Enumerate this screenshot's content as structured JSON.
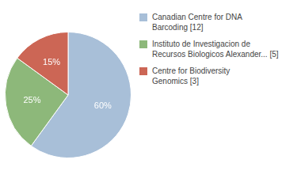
{
  "chart_data": {
    "type": "pie",
    "categories": [
      "Canadian Centre for DNA\nBarcoding [12]",
      "Instituto de Investigacion de\nRecursos Biologicos Alexander... [5]",
      "Centre for Biodiversity\nGenomics [3]"
    ],
    "values": [
      60,
      25,
      15
    ],
    "value_labels": [
      "60%",
      "25%",
      "15%"
    ],
    "data_labels": true,
    "colors": [
      "#a8bfd8",
      "#8db87a",
      "#cc6655"
    ],
    "legend": "right"
  }
}
